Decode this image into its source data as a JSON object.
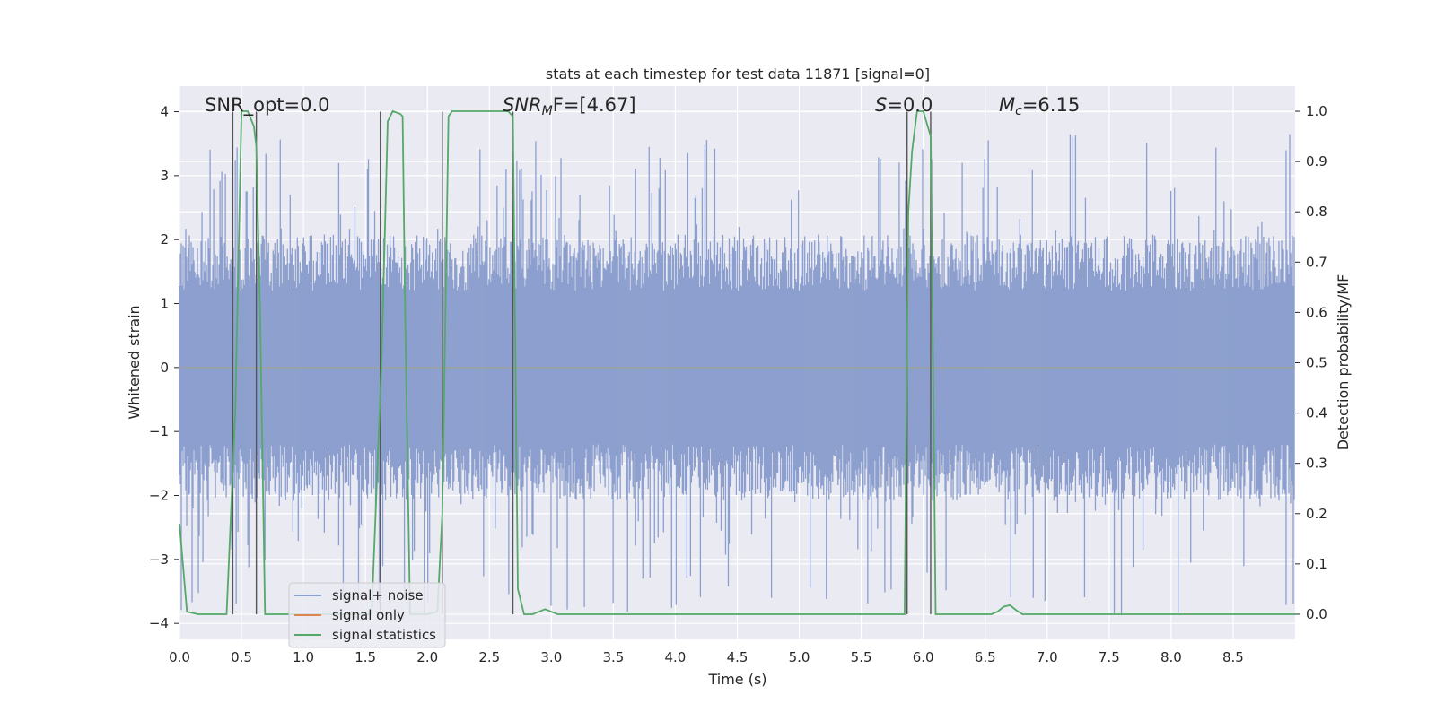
{
  "chart_data": {
    "type": "line",
    "title": "stats at each timestep for test data 11871 [signal=0]",
    "xlabel": "Time (s)",
    "ylabel_left": "Whitened strain",
    "ylabel_right": "Detection probability/MF",
    "xlim": [
      0.0,
      9.0
    ],
    "ylim_left": [
      -4.25,
      4.4
    ],
    "ylim_right": [
      -0.05,
      1.05
    ],
    "x_ticks": [
      "0.0",
      "0.5",
      "1.0",
      "1.5",
      "2.0",
      "2.5",
      "3.0",
      "3.5",
      "4.0",
      "4.5",
      "5.0",
      "5.5",
      "6.0",
      "6.5",
      "7.0",
      "7.5",
      "8.0",
      "8.5"
    ],
    "y_ticks_left": [
      "−4",
      "−3",
      "−2",
      "−1",
      "0",
      "1",
      "2",
      "3",
      "4"
    ],
    "y_ticks_right": [
      "0.0",
      "0.1",
      "0.2",
      "0.3",
      "0.4",
      "0.5",
      "0.6",
      "0.7",
      "0.8",
      "0.9",
      "1.0"
    ],
    "grid": true,
    "background": "#eaeaf2",
    "annotations": {
      "snr_opt": "SNR_opt=0.0",
      "snr_mf_prefix": "SNR",
      "snr_mf_sub": "M",
      "snr_mf_suffix": "F=[4.67]",
      "s_italic": "S",
      "s_value": "=0.0",
      "mc_italic": "M",
      "mc_sub": "c",
      "mc_value": "=6.15"
    },
    "legend": {
      "placement": "lower-left",
      "entries": [
        {
          "label": "signal+ noise",
          "color": "#8c9fce"
        },
        {
          "label": "signal only",
          "color": "#dd8452"
        },
        {
          "label": "signal statistics",
          "color": "#55a868"
        }
      ]
    },
    "noise_band": {
      "name": "signal+ noise",
      "color": "#8c9fce",
      "typical_range": [
        -1.6,
        1.6
      ],
      "peak_range": [
        -3.9,
        3.7
      ]
    },
    "signal_only": {
      "name": "signal only",
      "color": "#dd8452",
      "value": 0.0
    },
    "signal_statistics": {
      "name": "signal statistics",
      "color": "#55a868",
      "x": [
        0.0,
        0.06,
        0.15,
        0.3,
        0.38,
        0.45,
        0.5,
        0.55,
        0.6,
        0.62,
        0.65,
        0.69,
        0.8,
        1.0,
        1.2,
        1.4,
        1.55,
        1.63,
        1.68,
        1.72,
        1.78,
        1.8,
        1.82,
        1.86,
        1.92,
        2.0,
        2.08,
        2.12,
        2.17,
        2.2,
        2.3,
        2.5,
        2.65,
        2.69,
        2.73,
        2.78,
        2.85,
        2.95,
        3.05,
        3.5,
        4.0,
        4.5,
        5.0,
        5.5,
        5.8,
        5.85,
        5.88,
        5.91,
        5.95,
        6.0,
        6.06,
        6.1,
        6.12,
        6.3,
        6.55,
        6.6,
        6.65,
        6.7,
        6.75,
        6.8,
        7.0,
        7.5,
        8.0,
        8.5,
        9.0
      ],
      "y": [
        0.18,
        0.005,
        0.0,
        0.0,
        0.0,
        0.4,
        1.0,
        1.0,
        0.97,
        0.93,
        0.6,
        0.0,
        0.0,
        0.0,
        0.0,
        0.0,
        0.0,
        0.5,
        0.98,
        1.0,
        0.995,
        0.99,
        0.6,
        0.0,
        0.0,
        0.0,
        0.005,
        0.2,
        0.99,
        1.0,
        1.0,
        1.0,
        1.0,
        0.99,
        0.05,
        0.0,
        0.0,
        0.01,
        0.0,
        0.0,
        0.0,
        0.0,
        0.0,
        0.0,
        0.0,
        0.0,
        0.8,
        0.92,
        1.0,
        1.0,
        0.95,
        0.0,
        0.0,
        0.0,
        0.0,
        0.005,
        0.015,
        0.018,
        0.008,
        0.0,
        0.0,
        0.0,
        0.0,
        0.0,
        0.0
      ]
    },
    "vertical_markers": {
      "color": "#555555",
      "x": [
        0.43,
        0.62,
        1.62,
        2.12,
        2.69,
        5.87,
        6.06
      ]
    }
  }
}
